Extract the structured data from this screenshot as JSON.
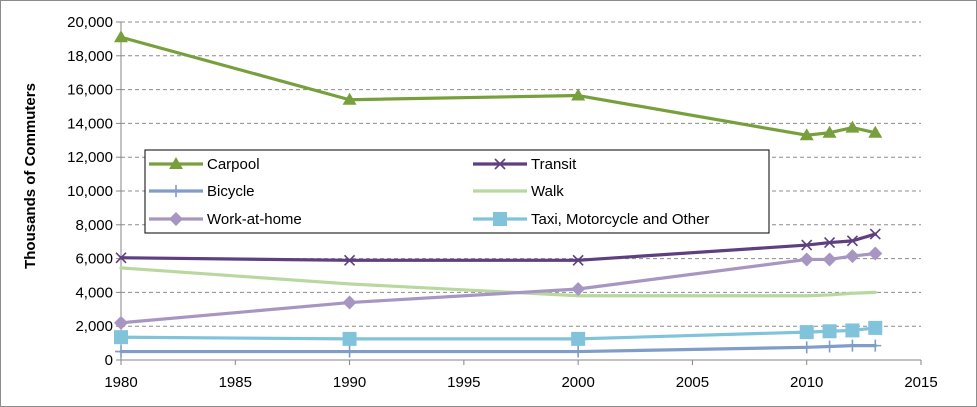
{
  "chart_data": {
    "type": "line",
    "title": "",
    "xlabel": "",
    "ylabel": "Thousands of Commuters",
    "xlim": [
      1980,
      2015
    ],
    "ylim": [
      0,
      20000
    ],
    "x_ticks": [
      "1980",
      "1985",
      "1990",
      "1995",
      "2000",
      "2005",
      "2010",
      "2015"
    ],
    "y_ticks": [
      "0",
      "2,000",
      "4,000",
      "6,000",
      "8,000",
      "10,000",
      "12,000",
      "14,000",
      "16,000",
      "18,000",
      "20,000"
    ],
    "grid": "horizontal dashed",
    "legend_position": "inside-left",
    "series": [
      {
        "name": "Carpool",
        "color": "#77a03c",
        "marker": "triangle",
        "points": [
          [
            1980,
            19100
          ],
          [
            1990,
            15400
          ],
          [
            2000,
            15650
          ],
          [
            2010,
            13300
          ],
          [
            2011,
            13450
          ],
          [
            2012,
            13750
          ],
          [
            2013,
            13450
          ]
        ]
      },
      {
        "name": "Transit",
        "color": "#5e3f7f",
        "marker": "x",
        "points": [
          [
            1980,
            6050
          ],
          [
            1990,
            5900
          ],
          [
            2000,
            5900
          ],
          [
            2010,
            6800
          ],
          [
            2011,
            6950
          ],
          [
            2012,
            7050
          ],
          [
            2013,
            7450
          ]
        ]
      },
      {
        "name": "Bicycle",
        "color": "#7f9dc8",
        "marker": "plus",
        "points": [
          [
            1980,
            500
          ],
          [
            1990,
            500
          ],
          [
            2000,
            500
          ],
          [
            2010,
            750
          ],
          [
            2011,
            800
          ],
          [
            2012,
            850
          ],
          [
            2013,
            850
          ]
        ]
      },
      {
        "name": "Walk",
        "color": "#b9d7a0",
        "marker": "none",
        "points": [
          [
            1980,
            5450
          ],
          [
            1990,
            4500
          ],
          [
            2000,
            3800
          ],
          [
            2010,
            3800
          ],
          [
            2011,
            3850
          ],
          [
            2012,
            3950
          ],
          [
            2013,
            4000
          ]
        ]
      },
      {
        "name": "Work-at-home",
        "color": "#a796c2",
        "marker": "diamond",
        "points": [
          [
            1980,
            2200
          ],
          [
            1990,
            3400
          ],
          [
            2000,
            4200
          ],
          [
            2010,
            5950
          ],
          [
            2011,
            5950
          ],
          [
            2012,
            6150
          ],
          [
            2013,
            6300
          ]
        ]
      },
      {
        "name": "Taxi, Motorcycle and Other",
        "color": "#82c3dc",
        "marker": "square",
        "points": [
          [
            1980,
            1350
          ],
          [
            1990,
            1250
          ],
          [
            2000,
            1250
          ],
          [
            2010,
            1650
          ],
          [
            2011,
            1700
          ],
          [
            2012,
            1750
          ],
          [
            2013,
            1900
          ]
        ]
      }
    ]
  }
}
